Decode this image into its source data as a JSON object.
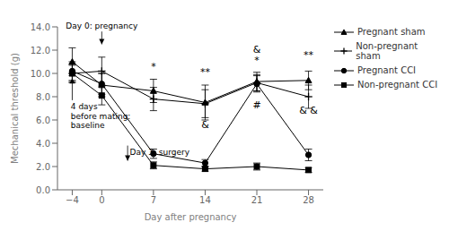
{
  "chart_data": {
    "type": "line",
    "xlabel": "Day after pregnancy",
    "ylabel": "Mechanical threshold (g)",
    "x": [
      -4,
      0,
      7,
      14,
      21,
      28
    ],
    "xlim": [
      -6,
      30
    ],
    "xticks": [
      {
        "value": -4,
        "label": "−4"
      },
      0,
      7,
      14,
      21,
      28
    ],
    "ylim": [
      0.0,
      14.0
    ],
    "yticks": [
      {
        "value": 0.0,
        "label": "0.0"
      },
      {
        "value": 2.0,
        "label": "2.0"
      },
      {
        "value": 4.0,
        "label": "4.0"
      },
      {
        "value": 6.0,
        "label": "6.0"
      },
      {
        "value": 8.0,
        "label": "8.0"
      },
      {
        "value": 10.0,
        "label": "10.0"
      },
      {
        "value": 12.0,
        "label": "12.0"
      },
      {
        "value": 14.0,
        "label": "14.0"
      }
    ],
    "grid": false,
    "legend": "right",
    "series": [
      {
        "name": "Pregnant sham",
        "color": "#000000",
        "marker": "triangle",
        "line_style": "solid",
        "values": [
          11.0,
          9.0,
          8.5,
          7.5,
          9.3,
          9.4
        ],
        "errors": [
          1.2,
          1.0,
          1.0,
          1.5,
          0.8,
          0.8
        ]
      },
      {
        "name": "Non-pregnant sham",
        "color": "#000000",
        "marker": "plus",
        "line_style": "solid",
        "values": [
          10.0,
          10.2,
          7.8,
          7.4,
          9.2,
          8.0
        ],
        "errors": [
          0.8,
          1.2,
          1.0,
          1.2,
          0.7,
          1.0
        ]
      },
      {
        "name": "Pregnant CCI",
        "color": "#000000",
        "marker": "circle",
        "line_style": "solid",
        "values": [
          10.2,
          9.1,
          3.1,
          2.3,
          9.1,
          3.0
        ],
        "errors": [
          0.8,
          0.9,
          0.4,
          0.3,
          0.7,
          0.5
        ]
      },
      {
        "name": "Non-pregnant CCI",
        "color": "#000000",
        "marker": "square",
        "line_style": "solid",
        "values": [
          10.0,
          8.1,
          2.1,
          1.8,
          2.0,
          1.7
        ],
        "errors": [
          0.7,
          0.8,
          0.3,
          0.2,
          0.3,
          0.2
        ]
      }
    ],
    "annotations": [
      {
        "text": "*",
        "x": 7,
        "y": 10.2
      },
      {
        "text": "**",
        "x": 14,
        "y": 9.8
      },
      {
        "text": "&",
        "x": 14,
        "y": 5.2
      },
      {
        "text": "&",
        "x": 21,
        "y": 11.7
      },
      {
        "text": "*",
        "x": 21,
        "y": 10.8
      },
      {
        "text": "#",
        "x": 21,
        "y": 6.9
      },
      {
        "text": "**",
        "x": 28,
        "y": 11.2
      },
      {
        "text": "& &",
        "x": 28,
        "y": 6.5
      },
      {
        "text": "Day 0: pregnancy",
        "x": 0,
        "y": 13.75,
        "arrow_from": [
          0,
          13.6
        ],
        "arrow_to": [
          0,
          12.5
        ]
      },
      {
        "text": "4 days\nbefore mating:\nbaseline",
        "x": -4.2,
        "y": 7.5,
        "arrow_from": [
          -4,
          7.7
        ],
        "arrow_to": [
          -4,
          9.6
        ]
      },
      {
        "text": "Day 3: surgery",
        "x": 3.8,
        "y": 3.6,
        "arrow_from": [
          3.5,
          3.8
        ],
        "arrow_to": [
          3.5,
          2.5
        ]
      }
    ]
  }
}
